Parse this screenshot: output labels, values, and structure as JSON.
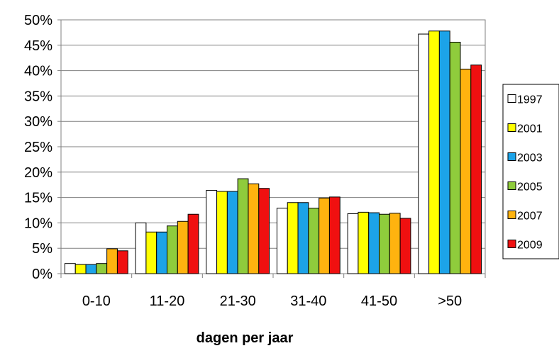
{
  "chart_data": {
    "type": "bar",
    "title": "",
    "xlabel": "dagen per jaar",
    "ylabel": "",
    "ylim": [
      0,
      50
    ],
    "ytick_step": 5,
    "ytick_suffix": "%",
    "grid": "horizontal",
    "legend": "right",
    "categories": [
      "0-10",
      "11-20",
      "21-30",
      "31-40",
      "41-50",
      ">50"
    ],
    "series": [
      {
        "name": "1997",
        "color": "#ffffff",
        "values": [
          2.0,
          10.0,
          16.4,
          12.9,
          11.8,
          47.2
        ]
      },
      {
        "name": "2001",
        "color": "#ffff00",
        "values": [
          1.8,
          8.2,
          16.2,
          14.0,
          12.1,
          47.8
        ]
      },
      {
        "name": "2003",
        "color": "#1ca3e8",
        "values": [
          1.8,
          8.2,
          16.2,
          14.0,
          12.0,
          47.8
        ]
      },
      {
        "name": "2005",
        "color": "#8fcc3c",
        "values": [
          2.0,
          9.4,
          18.7,
          12.9,
          11.7,
          45.6
        ]
      },
      {
        "name": "2007",
        "color": "#ffb30f",
        "values": [
          4.9,
          10.3,
          17.7,
          14.9,
          11.9,
          40.3
        ]
      },
      {
        "name": "2009",
        "color": "#f01010",
        "values": [
          4.5,
          11.7,
          16.8,
          15.1,
          10.9,
          41.1
        ]
      }
    ]
  }
}
